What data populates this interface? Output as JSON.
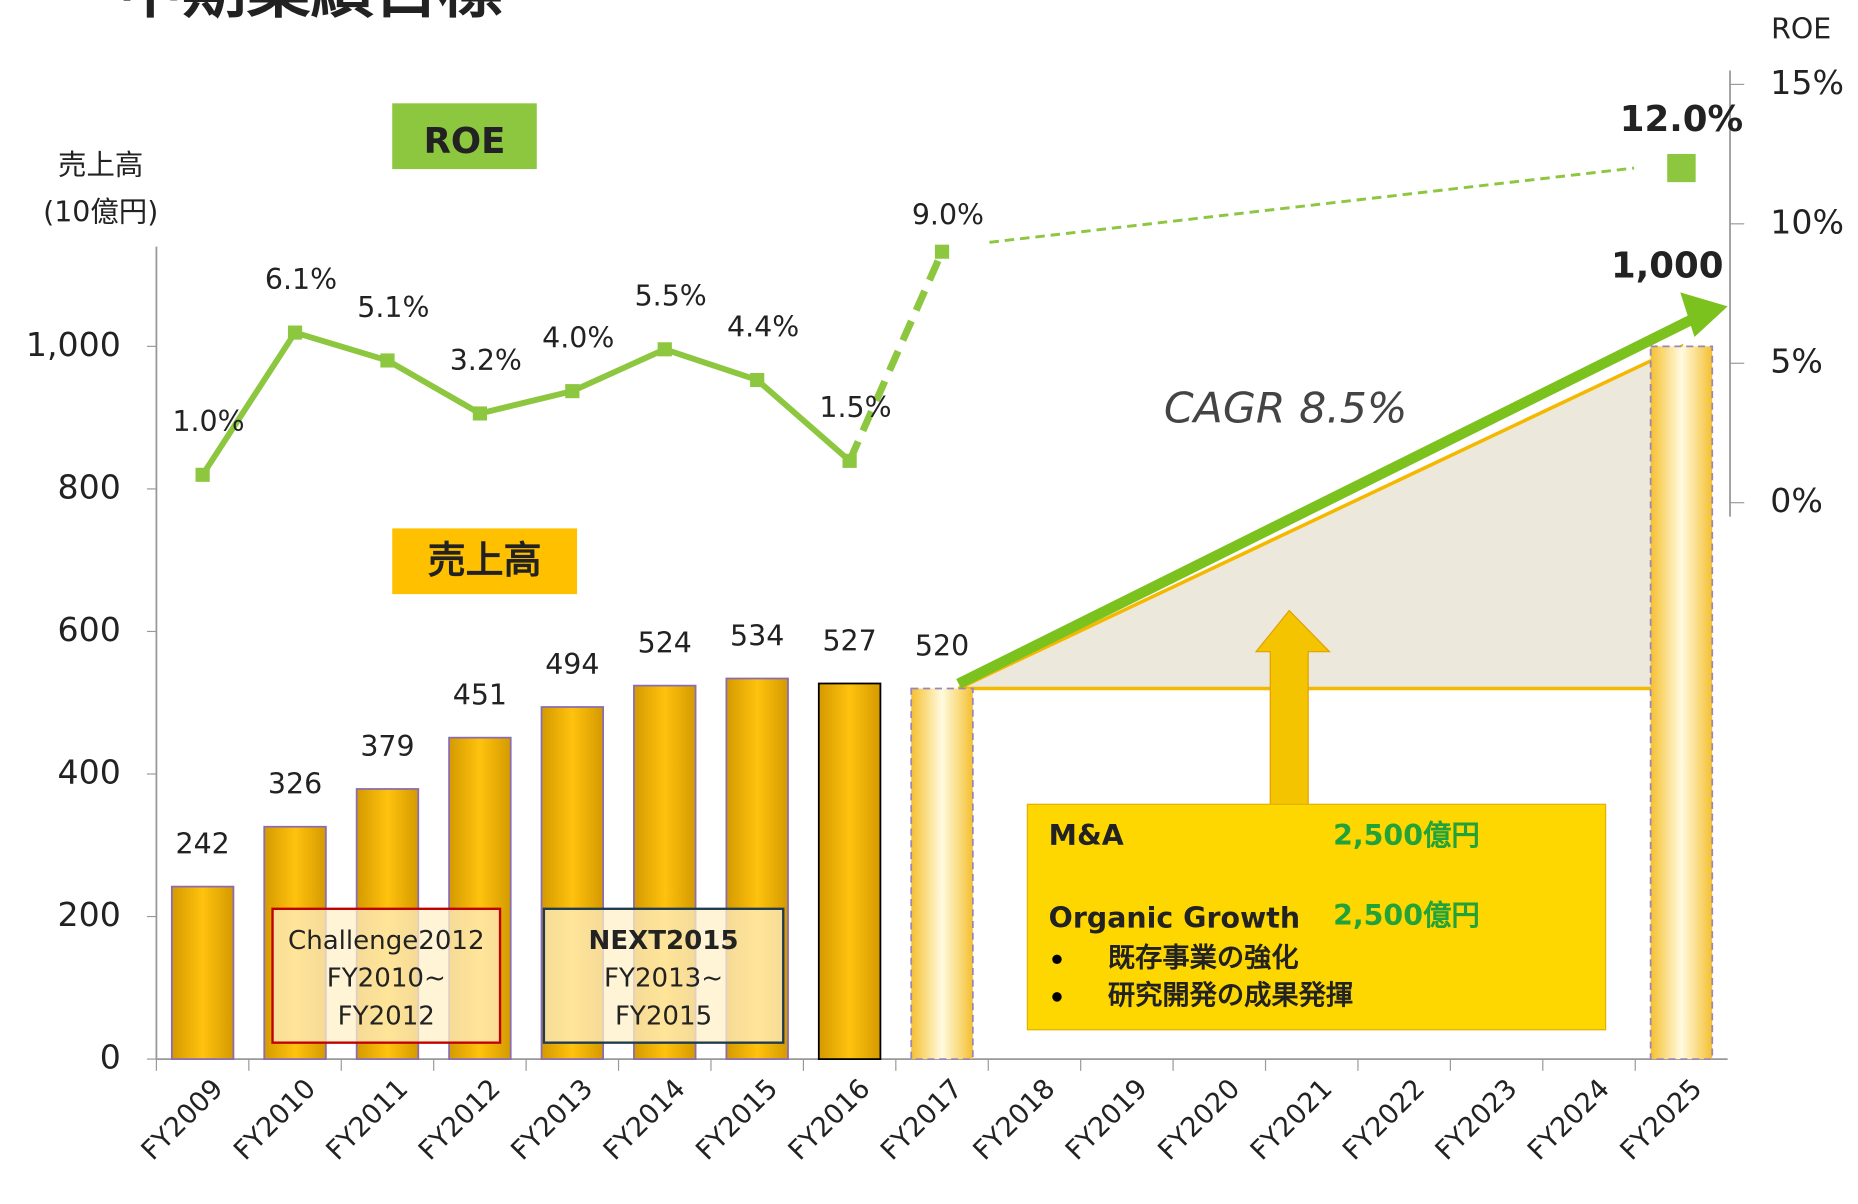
{
  "chart_data": {
    "type": "bar",
    "title": "中期業績目標",
    "y_axis_label": [
      "売上高",
      "(10億円)"
    ],
    "y2_axis_label": "ROE",
    "categories": [
      "FY2009",
      "FY2010",
      "FY2011",
      "FY2012",
      "FY2013",
      "FY2014",
      "FY2015",
      "FY2016",
      "FY2017",
      "FY2018",
      "FY2019",
      "FY2020",
      "FY2021",
      "FY2022",
      "FY2023",
      "FY2024",
      "FY2025"
    ],
    "series": [
      {
        "name": "売上高",
        "type": "bar",
        "color": "#e8ac00",
        "values": [
          242,
          326,
          379,
          451,
          494,
          524,
          534,
          527,
          520,
          null,
          null,
          null,
          null,
          null,
          null,
          null,
          1000
        ],
        "value_labels": [
          "242",
          "326",
          "379",
          "451",
          "494",
          "524",
          "534",
          "527",
          "520",
          null,
          null,
          null,
          null,
          null,
          null,
          null,
          "1,000"
        ]
      },
      {
        "name": "ROE",
        "type": "line",
        "axis": "y2",
        "color": "#8dc63f",
        "values": [
          1.0,
          6.1,
          5.1,
          3.2,
          4.0,
          5.5,
          4.4,
          1.5,
          9.0,
          null,
          null,
          null,
          null,
          null,
          null,
          null,
          12.0
        ],
        "value_labels": [
          "1.0%",
          "6.1%",
          "5.1%",
          "3.2%",
          "4.0%",
          "5.5%",
          "4.4%",
          "1.5%",
          "9.0%",
          null,
          null,
          null,
          null,
          null,
          null,
          null,
          "12.0%"
        ]
      }
    ],
    "ylim": [
      0,
      1140
    ],
    "yticks": [
      0,
      200,
      400,
      600,
      800,
      {
        "value": 1000,
        "label": "1,000"
      }
    ],
    "y2lim": [
      -0.5,
      15.5
    ],
    "y2ticks": [
      {
        "value": 0,
        "label": "0%"
      },
      {
        "value": 5,
        "label": "5%"
      },
      {
        "value": 10,
        "label": "10%"
      },
      {
        "value": 15,
        "label": "15%"
      }
    ],
    "cagr": "CAGR  8.5%",
    "plans": [
      {
        "name": "Challenge2012",
        "period": [
          "FY2010~",
          "FY2012"
        ]
      },
      {
        "name": "NEXT2015",
        "period": [
          "FY2013~",
          "FY2015"
        ]
      }
    ],
    "growth_box": {
      "rows": [
        {
          "label": "M&A",
          "amount": "2,500億円"
        },
        {
          "label": "Organic Growth",
          "amount": "2,500億円"
        }
      ],
      "bullets": [
        "既存事業の強化",
        "研究開発の成果発揮"
      ]
    }
  }
}
